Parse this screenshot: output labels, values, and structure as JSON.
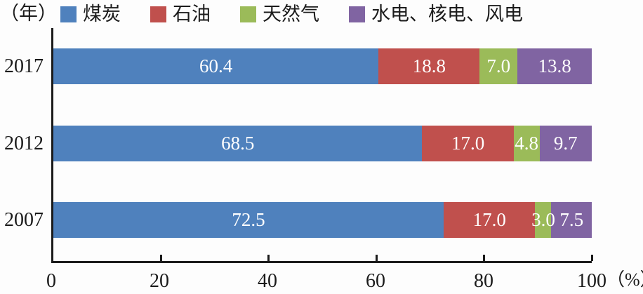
{
  "labels": {
    "y_axis_unit": "（年）",
    "x_axis_unit": "（%）"
  },
  "chart_data": {
    "type": "bar",
    "orientation": "horizontal",
    "stacked": true,
    "title": "",
    "xlabel": "（%）",
    "ylabel": "（年）",
    "xlim": [
      0,
      100
    ],
    "xticks": [
      0,
      20,
      40,
      60,
      80,
      100
    ],
    "grid": false,
    "legend_position": "top",
    "value_labels_shown": true,
    "categories": [
      "2017",
      "2012",
      "2007"
    ],
    "series": [
      {
        "name": "煤炭",
        "color": "#4F81BD",
        "values": [
          60.4,
          68.5,
          72.5
        ]
      },
      {
        "name": "石油",
        "color": "#C0504D",
        "values": [
          18.8,
          17.0,
          17.0
        ]
      },
      {
        "name": "天然气",
        "color": "#9BBB59",
        "values": [
          7.0,
          4.8,
          3.0
        ]
      },
      {
        "name": "水电、核电、风电",
        "color": "#8064A2",
        "values": [
          13.8,
          9.7,
          7.5
        ]
      }
    ],
    "axis_color": "#1b1b1b",
    "value_label_color": "#ffffff"
  },
  "layout": {
    "bar_row_tops": [
      29,
      139,
      248
    ],
    "cat_label_tops": [
      79,
      189,
      298
    ]
  }
}
